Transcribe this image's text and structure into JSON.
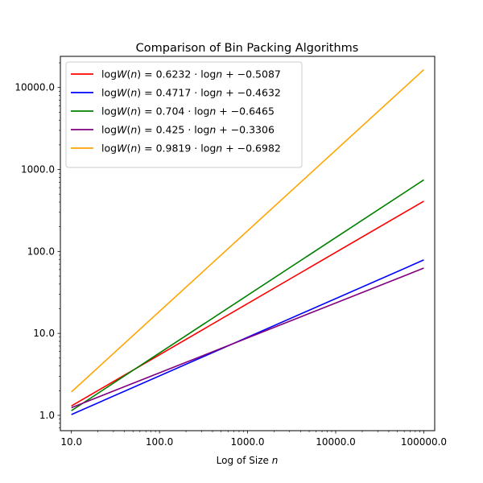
{
  "chart_data": {
    "type": "line",
    "title": "Comparison of Bin Packing Algorithms",
    "xlabel": "Log of Size",
    "xlabel_var": "n",
    "ylabel": "",
    "x_scale": "log",
    "y_scale": "log",
    "xlim": [
      7.5,
      133000
    ],
    "ylim": [
      0.65,
      24000
    ],
    "x_ticks": [
      10,
      100,
      1000,
      10000,
      100000
    ],
    "x_tick_labels": [
      "10.0",
      "100.0",
      "1000.0",
      "10000.0",
      "100000.0"
    ],
    "y_ticks": [
      1,
      10,
      100,
      1000,
      10000
    ],
    "y_tick_labels": [
      "1.0",
      "10.0",
      "100.0",
      "1000.0",
      "10000.0"
    ],
    "grid": false,
    "legend_position": "top-left",
    "x": [
      10,
      100000
    ],
    "series": [
      {
        "name": "logW(n) = 0.6232 · log n + −0.5087",
        "color": "#ff0000",
        "slope": 0.6232,
        "intercept": -0.5087,
        "values": [
          1.301,
          410.0
        ]
      },
      {
        "name": "logW(n) = 0.4717 · log n + −0.4632",
        "color": "#0000ff",
        "slope": 0.4717,
        "intercept": -0.4632,
        "values": [
          1.022,
          78.7
        ]
      },
      {
        "name": "logW(n) = 0.704 · log n + −0.6465",
        "color": "#008000",
        "slope": 0.704,
        "intercept": -0.6465,
        "values": [
          1.139,
          746.0
        ]
      },
      {
        "name": "logW(n) = 0.425 · log n + −0.3306",
        "color": "#800080",
        "slope": 0.425,
        "intercept": -0.3306,
        "values": [
          1.239,
          62.6
        ]
      },
      {
        "name": "logW(n) = 0.9819 · log n + −0.6982",
        "color": "#ffa500",
        "slope": 0.9819,
        "intercept": -0.6982,
        "values": [
          1.93,
          16500.0
        ]
      }
    ],
    "legend_entries": [
      {
        "lhs": "log",
        "fn": "W",
        "arg": "n",
        "coef": "0.6232",
        "dot": "·",
        "log": "log",
        "var": "n",
        "plus": "+",
        "minus": "−",
        "const": "0.5087"
      },
      {
        "lhs": "log",
        "fn": "W",
        "arg": "n",
        "coef": "0.4717",
        "dot": "·",
        "log": "log",
        "var": "n",
        "plus": "+",
        "minus": "−",
        "const": "0.4632"
      },
      {
        "lhs": "log",
        "fn": "W",
        "arg": "n",
        "coef": "0.704",
        "dot": "·",
        "log": "log",
        "var": "n",
        "plus": "+",
        "minus": "−",
        "const": "0.6465"
      },
      {
        "lhs": "log",
        "fn": "W",
        "arg": "n",
        "coef": "0.425",
        "dot": "·",
        "log": "log",
        "var": "n",
        "plus": "+",
        "minus": "−",
        "const": "0.3306"
      },
      {
        "lhs": "log",
        "fn": "W",
        "arg": "n",
        "coef": "0.9819",
        "dot": "·",
        "log": "log",
        "var": "n",
        "plus": "+",
        "minus": "−",
        "const": "0.6982"
      }
    ]
  }
}
